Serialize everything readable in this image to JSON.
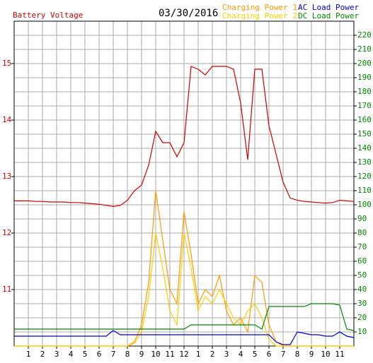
{
  "chart_data": {
    "type": "line",
    "title": "Battery Voltage",
    "subtitle": "03/30/2016",
    "x": [
      0,
      0.5,
      1,
      1.5,
      2,
      2.5,
      3,
      3.5,
      4,
      4.5,
      5,
      5.5,
      6,
      6.5,
      7,
      7.5,
      8,
      8.5,
      9,
      9.5,
      10,
      10.5,
      11,
      11.5,
      12,
      12.5,
      13,
      13.5,
      14,
      14.5,
      15,
      15.5,
      16,
      16.5,
      17,
      17.5,
      18,
      18.5,
      19,
      19.5,
      20,
      20.5,
      21,
      21.5,
      22,
      22.5,
      23,
      23.5,
      24
    ],
    "xlim": [
      0,
      24
    ],
    "xticks": [
      1,
      2,
      3,
      4,
      5,
      6,
      7,
      8,
      9,
      10,
      11,
      12,
      {
        "value": 13,
        "label": "1"
      },
      {
        "value": 14,
        "label": "2"
      },
      {
        "value": 15,
        "label": "3"
      },
      {
        "value": 16,
        "label": "4"
      },
      {
        "value": 17,
        "label": "5"
      },
      {
        "value": 18,
        "label": "6"
      },
      {
        "value": 19,
        "label": "7"
      },
      {
        "value": 20,
        "label": "8"
      },
      {
        "value": 21,
        "label": "9"
      },
      {
        "value": 22,
        "label": "10"
      },
      {
        "value": 23,
        "label": "11"
      }
    ],
    "ylim": [
      10,
      15.75
    ],
    "yticks": [
      11,
      12,
      13,
      14,
      15
    ],
    "y2lim": [
      0,
      230
    ],
    "y2ticks": [
      10,
      20,
      30,
      40,
      50,
      60,
      70,
      80,
      90,
      100,
      110,
      120,
      130,
      140,
      150,
      160,
      170,
      180,
      190,
      200,
      210,
      220
    ],
    "grid": true,
    "series": [
      {
        "name": "Battery Voltage",
        "color": "#cc0000",
        "axis": "y",
        "values": [
          12.57,
          12.57,
          12.57,
          12.56,
          12.56,
          12.55,
          12.55,
          12.55,
          12.54,
          12.54,
          12.53,
          12.52,
          12.51,
          12.49,
          12.47,
          12.49,
          12.58,
          12.75,
          12.85,
          13.2,
          13.8,
          13.6,
          13.6,
          13.35,
          13.6,
          14.95,
          14.9,
          14.8,
          14.95,
          14.95,
          14.95,
          14.9,
          14.3,
          13.3,
          14.9,
          14.9,
          13.9,
          13.4,
          12.9,
          12.62,
          12.58,
          12.56,
          12.55,
          12.54,
          12.53,
          12.54,
          12.58,
          12.57,
          12.56
        ]
      },
      {
        "name": "Charging Power 1",
        "color": "#ff9900",
        "axis": "y2",
        "values": [
          0,
          0,
          0,
          0,
          0,
          0,
          0,
          0,
          0,
          0,
          0,
          0,
          0,
          0,
          0,
          0,
          0,
          3,
          15,
          45,
          110,
          75,
          40,
          30,
          95,
          65,
          30,
          40,
          35,
          50,
          25,
          15,
          20,
          10,
          50,
          45,
          15,
          3,
          0,
          0,
          0,
          0,
          0,
          0,
          0,
          0,
          0,
          0,
          0
        ]
      },
      {
        "name": "Charging Power 2",
        "color": "#ffcc00",
        "axis": "y2",
        "values": [
          0,
          0,
          0,
          0,
          0,
          0,
          0,
          0,
          0,
          0,
          0,
          0,
          0,
          0,
          0,
          0,
          0,
          2,
          10,
          35,
          80,
          55,
          25,
          15,
          80,
          55,
          25,
          35,
          30,
          40,
          30,
          20,
          15,
          25,
          30,
          20,
          5,
          0,
          0,
          0,
          0,
          0,
          0,
          0,
          0,
          0,
          0,
          0,
          0
        ]
      },
      {
        "name": "AC Load Power",
        "color": "#0000cc",
        "axis": "y2",
        "values": [
          7,
          7,
          7,
          7,
          7,
          7,
          7,
          7,
          7,
          7,
          7,
          7,
          7,
          7,
          11,
          8,
          8,
          8,
          8,
          8,
          8,
          8,
          8,
          8,
          8,
          8,
          8,
          8,
          8,
          8,
          8,
          8,
          8,
          8,
          8,
          8,
          8,
          3,
          1,
          1,
          10,
          9,
          8,
          8,
          7,
          7,
          10,
          7,
          6
        ]
      },
      {
        "name": "DC Load Power",
        "color": "#008800",
        "axis": "y2",
        "values": [
          12,
          12,
          12,
          12,
          12,
          12,
          12,
          12,
          12,
          12,
          12,
          12,
          12,
          12,
          12,
          12,
          12,
          12,
          12,
          12,
          12,
          12,
          12,
          12,
          12,
          15,
          15,
          15,
          15,
          15,
          15,
          15,
          15,
          15,
          15,
          12,
          28,
          28,
          28,
          28,
          28,
          28,
          30,
          30,
          30,
          30,
          29,
          12,
          11
        ]
      }
    ]
  }
}
